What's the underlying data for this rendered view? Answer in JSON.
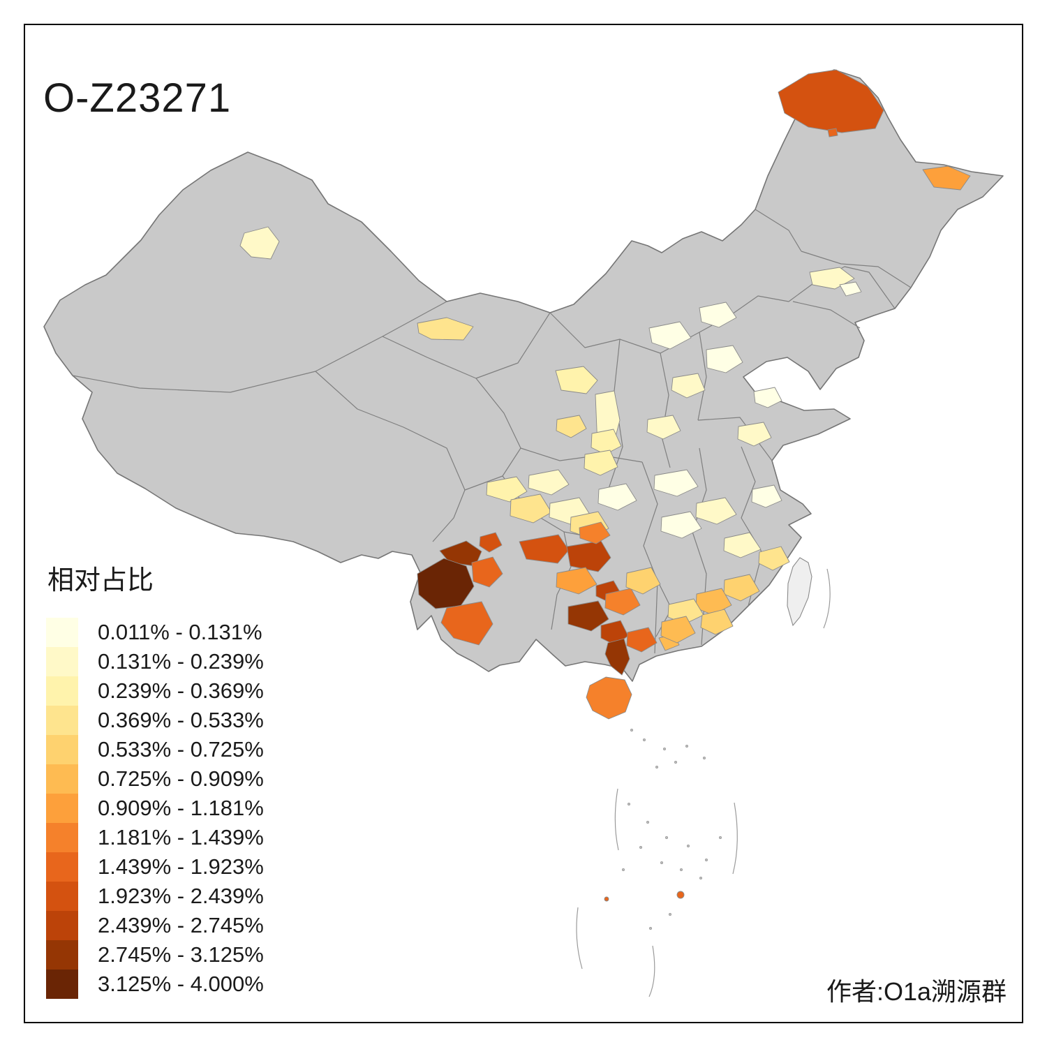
{
  "title": "O-Z23271",
  "credit": "作者:O1a溯源群",
  "legend": {
    "title": "相对占比",
    "classes": [
      {
        "range": "0.011% - 0.131%",
        "color": "#FFFFE5"
      },
      {
        "range": "0.131% - 0.239%",
        "color": "#FFF9C8"
      },
      {
        "range": "0.239% - 0.369%",
        "color": "#FFF3AC"
      },
      {
        "range": "0.369% - 0.533%",
        "color": "#FEE48E"
      },
      {
        "range": "0.533% - 0.725%",
        "color": "#FED26F"
      },
      {
        "range": "0.725% - 0.909%",
        "color": "#FEBB52"
      },
      {
        "range": "0.909% - 1.181%",
        "color": "#FDA03B"
      },
      {
        "range": "1.181% - 1.439%",
        "color": "#F5812B"
      },
      {
        "range": "1.439% - 1.923%",
        "color": "#E8661C"
      },
      {
        "range": "1.923% - 2.439%",
        "color": "#D45210"
      },
      {
        "range": "2.439% - 2.745%",
        "color": "#BC4309"
      },
      {
        "range": "2.745% - 3.125%",
        "color": "#953604"
      },
      {
        "range": "3.125% - 4.000%",
        "color": "#6A2505"
      }
    ]
  },
  "map": {
    "base_fill": "#C9C9C9",
    "border_color": "#757575",
    "water_fill": "#FFFFFF",
    "regions": [
      {
        "id": "r1",
        "class": 10
      },
      {
        "id": "r2",
        "class": 9
      },
      {
        "id": "r3",
        "class": 7
      },
      {
        "id": "r4",
        "class": 2
      },
      {
        "id": "r5",
        "class": 1
      },
      {
        "id": "r6",
        "class": 2
      },
      {
        "id": "r7",
        "class": 4
      },
      {
        "id": "r8",
        "class": 3
      },
      {
        "id": "r9",
        "class": 2
      },
      {
        "id": "r10",
        "class": 1
      },
      {
        "id": "r11",
        "class": 1
      },
      {
        "id": "r12",
        "class": 1
      },
      {
        "id": "r13",
        "class": 2
      },
      {
        "id": "r14",
        "class": 2
      },
      {
        "id": "r15",
        "class": 1
      },
      {
        "id": "r16",
        "class": 2
      },
      {
        "id": "r17",
        "class": 3
      },
      {
        "id": "r18",
        "class": 4
      },
      {
        "id": "r19",
        "class": 3
      },
      {
        "id": "r20",
        "class": 2
      },
      {
        "id": "r21",
        "class": 3
      },
      {
        "id": "r22",
        "class": 4
      },
      {
        "id": "r23",
        "class": 2
      },
      {
        "id": "r24",
        "class": 4
      },
      {
        "id": "r25",
        "class": 1
      },
      {
        "id": "r26",
        "class": 1
      },
      {
        "id": "r27",
        "class": 2
      },
      {
        "id": "r28",
        "class": 1
      },
      {
        "id": "r29",
        "class": 1
      },
      {
        "id": "r30",
        "class": 2
      },
      {
        "id": "r31",
        "class": 4
      },
      {
        "id": "r32",
        "class": 5
      },
      {
        "id": "r33",
        "class": 6
      },
      {
        "id": "r34",
        "class": 4
      },
      {
        "id": "r35",
        "class": 13
      },
      {
        "id": "r36",
        "class": 12
      },
      {
        "id": "r37",
        "class": 9
      },
      {
        "id": "r38",
        "class": 9
      },
      {
        "id": "r39",
        "class": 10
      },
      {
        "id": "r40",
        "class": 10
      },
      {
        "id": "r41",
        "class": 11
      },
      {
        "id": "r42",
        "class": 8
      },
      {
        "id": "r43",
        "class": 11
      },
      {
        "id": "r44",
        "class": 7
      },
      {
        "id": "r45",
        "class": 12
      },
      {
        "id": "r46",
        "class": 8
      },
      {
        "id": "r47",
        "class": 11
      },
      {
        "id": "r48",
        "class": 12
      },
      {
        "id": "r49",
        "class": 9
      },
      {
        "id": "r50",
        "class": 8
      },
      {
        "id": "r51",
        "class": 6
      },
      {
        "id": "r52",
        "class": 5
      },
      {
        "id": "r53",
        "class": 6
      },
      {
        "id": "r54",
        "class": 5
      },
      {
        "id": "r55",
        "class": 9
      },
      {
        "id": "r56",
        "class": 9
      }
    ]
  }
}
